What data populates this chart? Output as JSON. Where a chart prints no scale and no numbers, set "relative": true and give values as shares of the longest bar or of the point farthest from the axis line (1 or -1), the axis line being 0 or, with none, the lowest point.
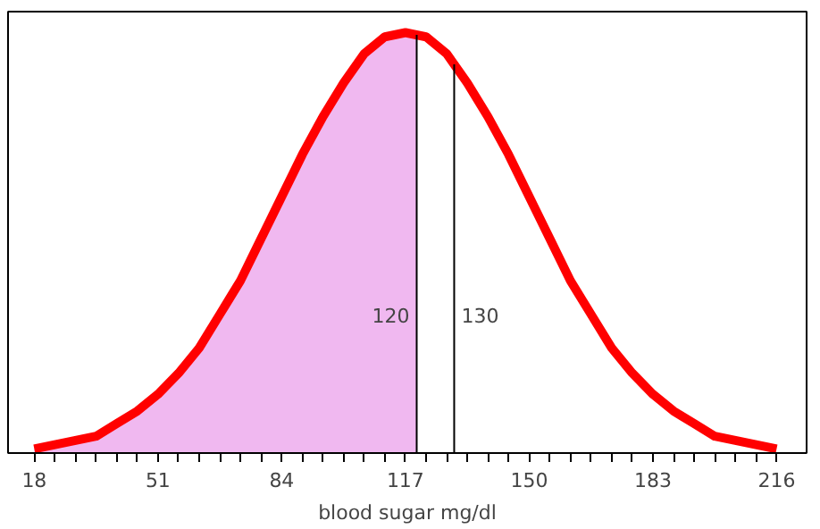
{
  "chart_data": {
    "type": "line",
    "relative": true,
    "xlabel": "blood sugar mg/dl",
    "xlim": [
      11,
      224
    ],
    "xticks": [
      18,
      {
        "value": 23.5,
        "label": null
      },
      {
        "value": 29,
        "label": null
      },
      {
        "value": 34.5,
        "label": null
      },
      {
        "value": 40,
        "label": null
      },
      {
        "value": 45.5,
        "label": null
      },
      51,
      {
        "value": 56.5,
        "label": null
      },
      {
        "value": 62,
        "label": null
      },
      {
        "value": 67.5,
        "label": null
      },
      {
        "value": 73,
        "label": null
      },
      {
        "value": 78.5,
        "label": null
      },
      84,
      {
        "value": 89.5,
        "label": null
      },
      {
        "value": 95,
        "label": null
      },
      {
        "value": 100.5,
        "label": null
      },
      {
        "value": 106,
        "label": null
      },
      {
        "value": 111.5,
        "label": null
      },
      117,
      {
        "value": 122.5,
        "label": null
      },
      {
        "value": 128,
        "label": null
      },
      {
        "value": 133.5,
        "label": null
      },
      {
        "value": 139,
        "label": null
      },
      {
        "value": 144.5,
        "label": null
      },
      150,
      {
        "value": 155.5,
        "label": null
      },
      {
        "value": 161,
        "label": null
      },
      {
        "value": 166.5,
        "label": null
      },
      {
        "value": 172,
        "label": null
      },
      {
        "value": 177.5,
        "label": null
      },
      183,
      {
        "value": 188.5,
        "label": null
      },
      {
        "value": 194,
        "label": null
      },
      {
        "value": 199.5,
        "label": null
      },
      {
        "value": 205,
        "label": null
      },
      {
        "value": 210.5,
        "label": null
      },
      216
    ],
    "series": [
      {
        "type": "area",
        "color": "#f0b8f0",
        "x": [
          18,
          23.5,
          29,
          34.5,
          40,
          45.5,
          51,
          56.5,
          62,
          67.5,
          73,
          78.5,
          84,
          89.5,
          95,
          100.5,
          106,
          111.5,
          117,
          120
        ],
        "values": [
          0.01,
          0.02,
          0.03,
          0.04,
          0.07,
          0.1,
          0.14,
          0.19,
          0.25,
          0.33,
          0.41,
          0.51,
          0.61,
          0.71,
          0.8,
          0.88,
          0.95,
          0.99,
          1,
          1
        ]
      },
      {
        "color": "#ff0000",
        "x": [
          18,
          23.5,
          29,
          34.5,
          40,
          45.5,
          51,
          56.5,
          62,
          67.5,
          73,
          78.5,
          84,
          89.5,
          95,
          100.5,
          106,
          111.5,
          117,
          122.5,
          128,
          133.5,
          139,
          144.5,
          150,
          155.5,
          161,
          166.5,
          172,
          177.5,
          183,
          188.5,
          194,
          199.5,
          205,
          210.5,
          216
        ],
        "values": [
          0.01,
          0.02,
          0.03,
          0.04,
          0.07,
          0.1,
          0.14,
          0.19,
          0.25,
          0.33,
          0.41,
          0.51,
          0.61,
          0.71,
          0.8,
          0.88,
          0.95,
          0.99,
          1,
          0.99,
          0.95,
          0.88,
          0.8,
          0.71,
          0.61,
          0.51,
          0.41,
          0.33,
          0.25,
          0.19,
          0.14,
          0.1,
          0.07,
          0.04,
          0.03,
          0.02,
          0.01
        ]
      }
    ],
    "ref_lines": [
      {
        "axis": "x",
        "value": 120,
        "label": "120",
        "color": "#000000"
      },
      {
        "axis": "x",
        "value": 130,
        "label": "130",
        "color": "#000000"
      }
    ]
  }
}
